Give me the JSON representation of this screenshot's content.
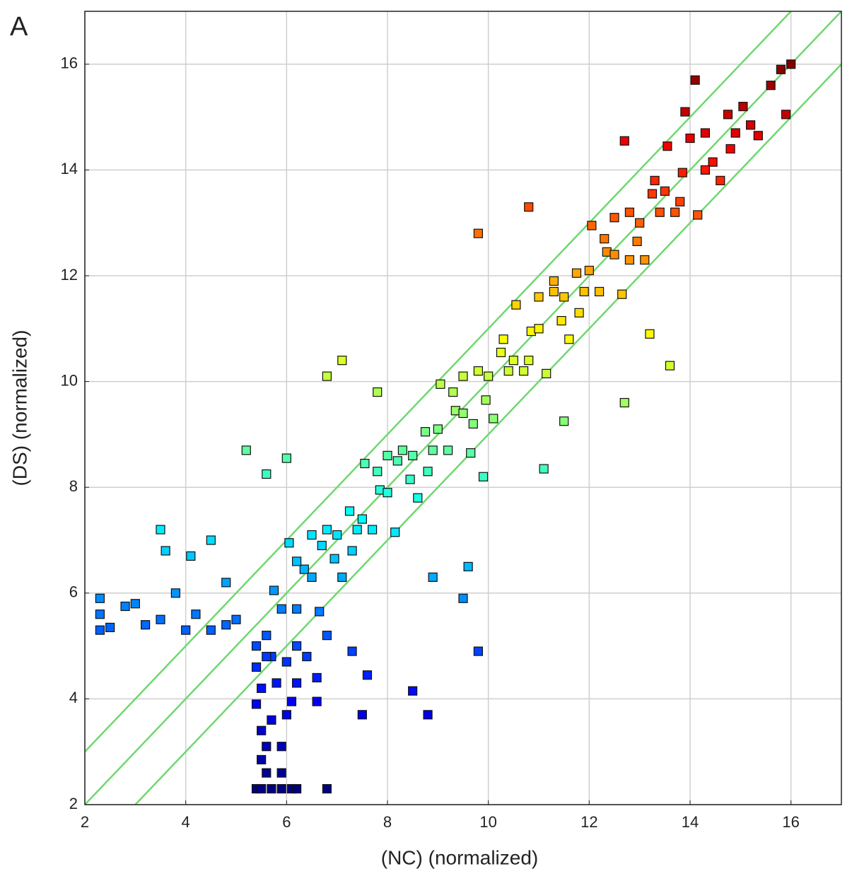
{
  "chart_data": {
    "type": "scatter",
    "panel_label": "A",
    "xlabel": "(NC) (normalized)",
    "ylabel": "(DS) (normalized)",
    "xlim": [
      2,
      17
    ],
    "ylim": [
      2,
      17
    ],
    "xticks": [
      2,
      4,
      6,
      8,
      10,
      12,
      14,
      16
    ],
    "yticks": [
      2,
      4,
      6,
      8,
      10,
      12,
      14,
      16
    ],
    "grid": true,
    "colormap": "jet",
    "marker": "square",
    "reference_lines": [
      {
        "slope": 1,
        "intercept": 1
      },
      {
        "slope": 1,
        "intercept": 0
      },
      {
        "slope": 1,
        "intercept": -1
      }
    ],
    "reference_color": "#6fd86f",
    "x": [
      2.3,
      2.3,
      2.3,
      2.5,
      2.8,
      3.0,
      3.2,
      3.5,
      3.5,
      3.6,
      3.8,
      4.0,
      4.1,
      4.2,
      4.5,
      4.5,
      4.8,
      4.8,
      5.0,
      5.2,
      5.4,
      5.5,
      5.7,
      5.9,
      6.1,
      6.2,
      6.8,
      5.6,
      5.9,
      5.5,
      5.6,
      5.9,
      5.5,
      5.7,
      6.0,
      5.4,
      6.1,
      6.6,
      5.5,
      5.8,
      6.2,
      6.6,
      5.4,
      5.7,
      6.0,
      6.4,
      5.4,
      5.6,
      6.2,
      6.8,
      7.5,
      8.5,
      8.8,
      7.6,
      7.3,
      9.8,
      5.6,
      5.75,
      5.9,
      6.05,
      6.2,
      6.35,
      6.5,
      6.65,
      6.8,
      6.95,
      7.1,
      7.25,
      7.4,
      7.55,
      7.7,
      7.85,
      8.0,
      8.15,
      8.3,
      8.45,
      8.6,
      8.75,
      8.9,
      9.05,
      9.2,
      9.35,
      9.5,
      9.65,
      9.8,
      9.95,
      10.1,
      10.25,
      10.4,
      10.55,
      10.7,
      10.85,
      11.0,
      11.15,
      11.3,
      11.45,
      11.6,
      11.75,
      11.9,
      12.05,
      12.2,
      12.35,
      12.5,
      12.65,
      12.8,
      12.95,
      13.1,
      13.25,
      13.4,
      13.55,
      13.7,
      13.85,
      14.0,
      14.15,
      14.3,
      14.45,
      14.6,
      14.75,
      14.9,
      15.05,
      15.2,
      15.35,
      15.6,
      15.8,
      16.0,
      15.9,
      14.1,
      6.8,
      7.1,
      9.8,
      10.8,
      12.7,
      13.6,
      11.1,
      9.9,
      7.8,
      6.0,
      5.6,
      8.9,
      9.5,
      9.6,
      12.7,
      13.9,
      13.2,
      11.5,
      6.5,
      7.0,
      7.5,
      8.0,
      8.5,
      9.0,
      9.5,
      10.0,
      10.5,
      11.0,
      11.5,
      12.0,
      12.5,
      13.0,
      13.5,
      6.2,
      6.7,
      7.3,
      7.8,
      8.2,
      8.8,
      9.3,
      9.7,
      10.3,
      10.8,
      11.3,
      11.8,
      12.3,
      12.8,
      13.3,
      13.8,
      14.3,
      14.8
    ],
    "values": [
      5.3,
      5.6,
      5.9,
      5.35,
      5.75,
      5.8,
      5.4,
      5.5,
      7.2,
      6.8,
      6.0,
      5.3,
      6.7,
      5.6,
      5.3,
      7.0,
      5.4,
      6.2,
      5.5,
      8.7,
      2.3,
      2.3,
      2.3,
      2.3,
      2.3,
      2.3,
      2.3,
      2.6,
      2.6,
      2.85,
      3.1,
      3.1,
      3.4,
      3.6,
      3.7,
      3.9,
      3.95,
      3.95,
      4.2,
      4.3,
      4.3,
      4.4,
      4.6,
      4.8,
      4.7,
      4.8,
      5.0,
      5.2,
      5.0,
      5.2,
      3.7,
      4.15,
      3.7,
      4.45,
      4.9,
      4.9,
      4.8,
      6.05,
      5.7,
      6.95,
      5.7,
      6.45,
      7.1,
      5.65,
      7.2,
      6.65,
      6.3,
      7.55,
      7.2,
      8.45,
      7.2,
      7.95,
      8.6,
      7.15,
      8.7,
      8.15,
      7.8,
      9.05,
      8.7,
      9.95,
      8.7,
      9.45,
      10.1,
      8.65,
      10.2,
      9.65,
      9.3,
      10.55,
      10.2,
      11.45,
      10.2,
      10.95,
      11.6,
      10.15,
      11.7,
      11.15,
      10.8,
      12.05,
      11.7,
      12.95,
      11.7,
      12.45,
      13.1,
      11.65,
      13.2,
      12.65,
      12.3,
      13.55,
      13.2,
      14.45,
      13.2,
      13.95,
      14.6,
      13.15,
      14.7,
      14.15,
      13.8,
      15.05,
      14.7,
      15.2,
      14.85,
      14.65,
      15.6,
      15.9,
      16.0,
      15.05,
      15.7,
      10.1,
      10.4,
      12.8,
      13.3,
      9.6,
      10.3,
      8.35,
      8.2,
      9.8,
      8.55,
      8.25,
      6.3,
      5.9,
      6.5,
      14.55,
      15.1,
      10.9,
      9.25,
      6.3,
      7.1,
      7.4,
      7.9,
      8.6,
      9.1,
      9.4,
      10.1,
      10.4,
      11.0,
      11.6,
      12.1,
      12.4,
      13.0,
      13.6,
      6.6,
      6.9,
      6.8,
      8.3,
      8.5,
      8.3,
      9.8,
      9.2,
      10.8,
      10.4,
      11.9,
      11.3,
      12.7,
      12.3,
      13.8,
      13.4,
      14.0,
      14.4
    ]
  }
}
